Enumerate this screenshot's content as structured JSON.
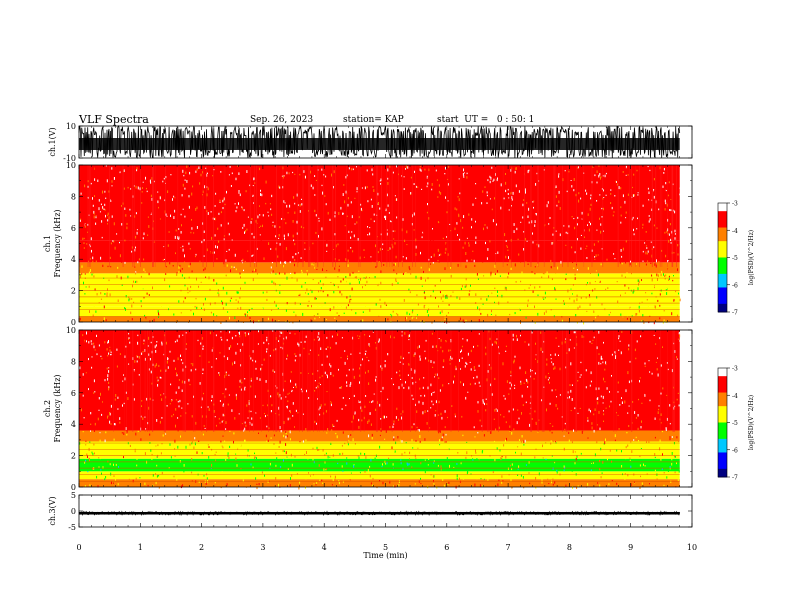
{
  "header": {
    "title": "VLF Spectra",
    "date": "Sep. 26, 2023",
    "station": "station= KAP",
    "start": "start  UT =   0 : 50: 1"
  },
  "chart_data": [
    {
      "type": "line",
      "name": "ch1-waveform",
      "ylabel": "ch.1(V)",
      "ylim": [
        -10,
        10
      ],
      "yticks": [
        "10",
        "-10"
      ],
      "xlim": [
        0,
        10
      ],
      "data_end_min": 9.8,
      "amplitude_range_V": [
        -10,
        10
      ],
      "color": "#000000"
    },
    {
      "type": "heatmap",
      "name": "ch1-spectrogram",
      "ylabel": "ch.1\nFrequency  (kHz)",
      "ylim": [
        0,
        10
      ],
      "yticks": [
        "0",
        "2",
        "4",
        "6",
        "8",
        "10"
      ],
      "xlim": [
        0,
        10
      ],
      "data_end_min": 9.8,
      "bands": [
        {
          "from_khz": 0,
          "to_khz": 0.35,
          "level": -4.2
        },
        {
          "from_khz": 0.35,
          "to_khz": 1.0,
          "level": -4.6
        },
        {
          "from_khz": 1.0,
          "to_khz": 3.1,
          "level": -4.5
        },
        {
          "from_khz": 3.1,
          "to_khz": 3.8,
          "level": -4.0
        },
        {
          "from_khz": 3.8,
          "to_khz": 5.2,
          "level": -3.6
        },
        {
          "from_khz": 5.2,
          "to_khz": 10,
          "level": -3.4
        }
      ],
      "colorbar": {
        "label": "log(PSD)(V^2/Hz)",
        "min": -7,
        "max": -3,
        "ticks": [
          "-3",
          "-4",
          "-5",
          "-6",
          "-7"
        ]
      }
    },
    {
      "type": "heatmap",
      "name": "ch2-spectrogram",
      "ylabel": "ch.2\nFrequency  (kHz)",
      "ylim": [
        0,
        10
      ],
      "yticks": [
        "0",
        "2",
        "4",
        "6",
        "8",
        "10"
      ],
      "xlim": [
        0,
        10
      ],
      "data_end_min": 9.8,
      "bands": [
        {
          "from_khz": 0,
          "to_khz": 0.5,
          "level": -4.2
        },
        {
          "from_khz": 0.5,
          "to_khz": 1.0,
          "level": -4.7
        },
        {
          "from_khz": 1.0,
          "to_khz": 1.8,
          "level": -5.1
        },
        {
          "from_khz": 1.8,
          "to_khz": 2.9,
          "level": -4.6
        },
        {
          "from_khz": 2.9,
          "to_khz": 3.6,
          "level": -4.0
        },
        {
          "from_khz": 3.6,
          "to_khz": 5.0,
          "level": -3.6
        },
        {
          "from_khz": 5.0,
          "to_khz": 10,
          "level": -3.4
        }
      ],
      "colorbar": {
        "label": "log(PSD)(V^2/Hz)",
        "min": -7,
        "max": -3,
        "ticks": [
          "-3",
          "-4",
          "-5",
          "-6",
          "-7"
        ]
      }
    },
    {
      "type": "line",
      "name": "ch3-waveform",
      "ylabel": "ch.3(V)",
      "ylim": [
        -5,
        5
      ],
      "yticks": [
        "5",
        "0",
        "-5"
      ],
      "xlim": [
        0,
        10
      ],
      "data_end_min": 9.8,
      "amplitude_range_V": [
        -1.2,
        -0.2
      ],
      "color": "#000000"
    }
  ],
  "xaxis": {
    "label": "Time  (min)",
    "ticks": [
      "0",
      "1",
      "2",
      "3",
      "4",
      "5",
      "6",
      "7",
      "8",
      "9",
      "10"
    ]
  },
  "colormap": [
    "#000080",
    "#0000ff",
    "#00c8ff",
    "#00ff00",
    "#ffff00",
    "#ff8000",
    "#ff0000",
    "#ffffff"
  ]
}
